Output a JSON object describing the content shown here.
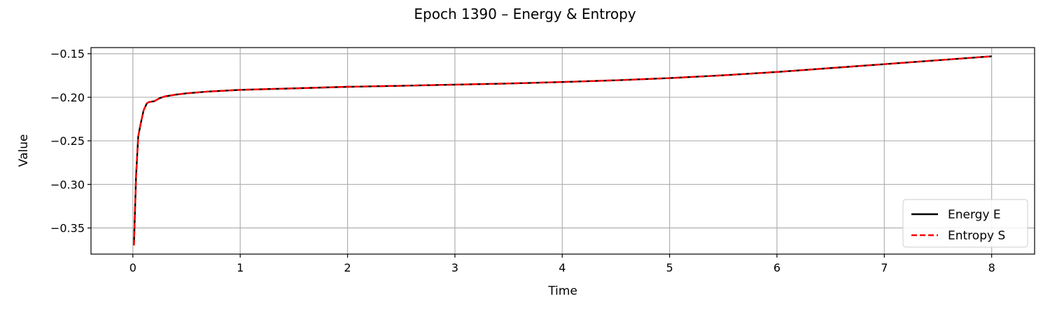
{
  "chart_data": {
    "type": "line",
    "title": "Epoch 1390 – Energy & Entropy",
    "xlabel": "Time",
    "ylabel": "Value",
    "xlim": [
      -0.39,
      8.4
    ],
    "ylim": [
      -0.38,
      -0.143
    ],
    "xticks": [
      0,
      1,
      2,
      3,
      4,
      5,
      6,
      7,
      8
    ],
    "xtick_labels": [
      "0",
      "1",
      "2",
      "3",
      "4",
      "5",
      "6",
      "7",
      "8"
    ],
    "yticks": [
      -0.35,
      -0.3,
      -0.25,
      -0.2,
      -0.15
    ],
    "ytick_labels": [
      "−0.35",
      "−0.30",
      "−0.25",
      "−0.20",
      "−0.15"
    ],
    "grid": true,
    "legend_position": "lower-right",
    "series": [
      {
        "name": "Energy E",
        "color": "#000000",
        "style": "solid",
        "x": [
          0.01,
          0.02,
          0.03,
          0.05,
          0.07,
          0.1,
          0.13,
          0.15,
          0.2,
          0.25,
          0.3,
          0.4,
          0.5,
          0.7,
          1.0,
          1.5,
          2.0,
          2.5,
          3.0,
          3.5,
          4.0,
          4.5,
          5.0,
          5.5,
          6.0,
          6.5,
          7.0,
          7.5,
          8.0
        ],
        "y": [
          -0.37,
          -0.33,
          -0.29,
          -0.245,
          -0.232,
          -0.215,
          -0.207,
          -0.2055,
          -0.2045,
          -0.201,
          -0.199,
          -0.197,
          -0.1955,
          -0.1935,
          -0.1915,
          -0.1898,
          -0.188,
          -0.1868,
          -0.1855,
          -0.1842,
          -0.1825,
          -0.1805,
          -0.178,
          -0.1748,
          -0.171,
          -0.1665,
          -0.162,
          -0.1575,
          -0.153
        ]
      },
      {
        "name": "Entropy S",
        "color": "#ff0000",
        "style": "dashed",
        "x": [
          0.01,
          0.02,
          0.03,
          0.05,
          0.07,
          0.1,
          0.13,
          0.15,
          0.2,
          0.25,
          0.3,
          0.4,
          0.5,
          0.7,
          1.0,
          1.5,
          2.0,
          2.5,
          3.0,
          3.5,
          4.0,
          4.5,
          5.0,
          5.5,
          6.0,
          6.5,
          7.0,
          7.5,
          8.0
        ],
        "y": [
          -0.37,
          -0.33,
          -0.29,
          -0.245,
          -0.232,
          -0.215,
          -0.207,
          -0.2055,
          -0.2045,
          -0.201,
          -0.199,
          -0.197,
          -0.1955,
          -0.1935,
          -0.1915,
          -0.1898,
          -0.188,
          -0.1868,
          -0.1855,
          -0.1842,
          -0.1825,
          -0.1805,
          -0.178,
          -0.1748,
          -0.171,
          -0.1665,
          -0.162,
          -0.1575,
          -0.153
        ]
      }
    ]
  }
}
